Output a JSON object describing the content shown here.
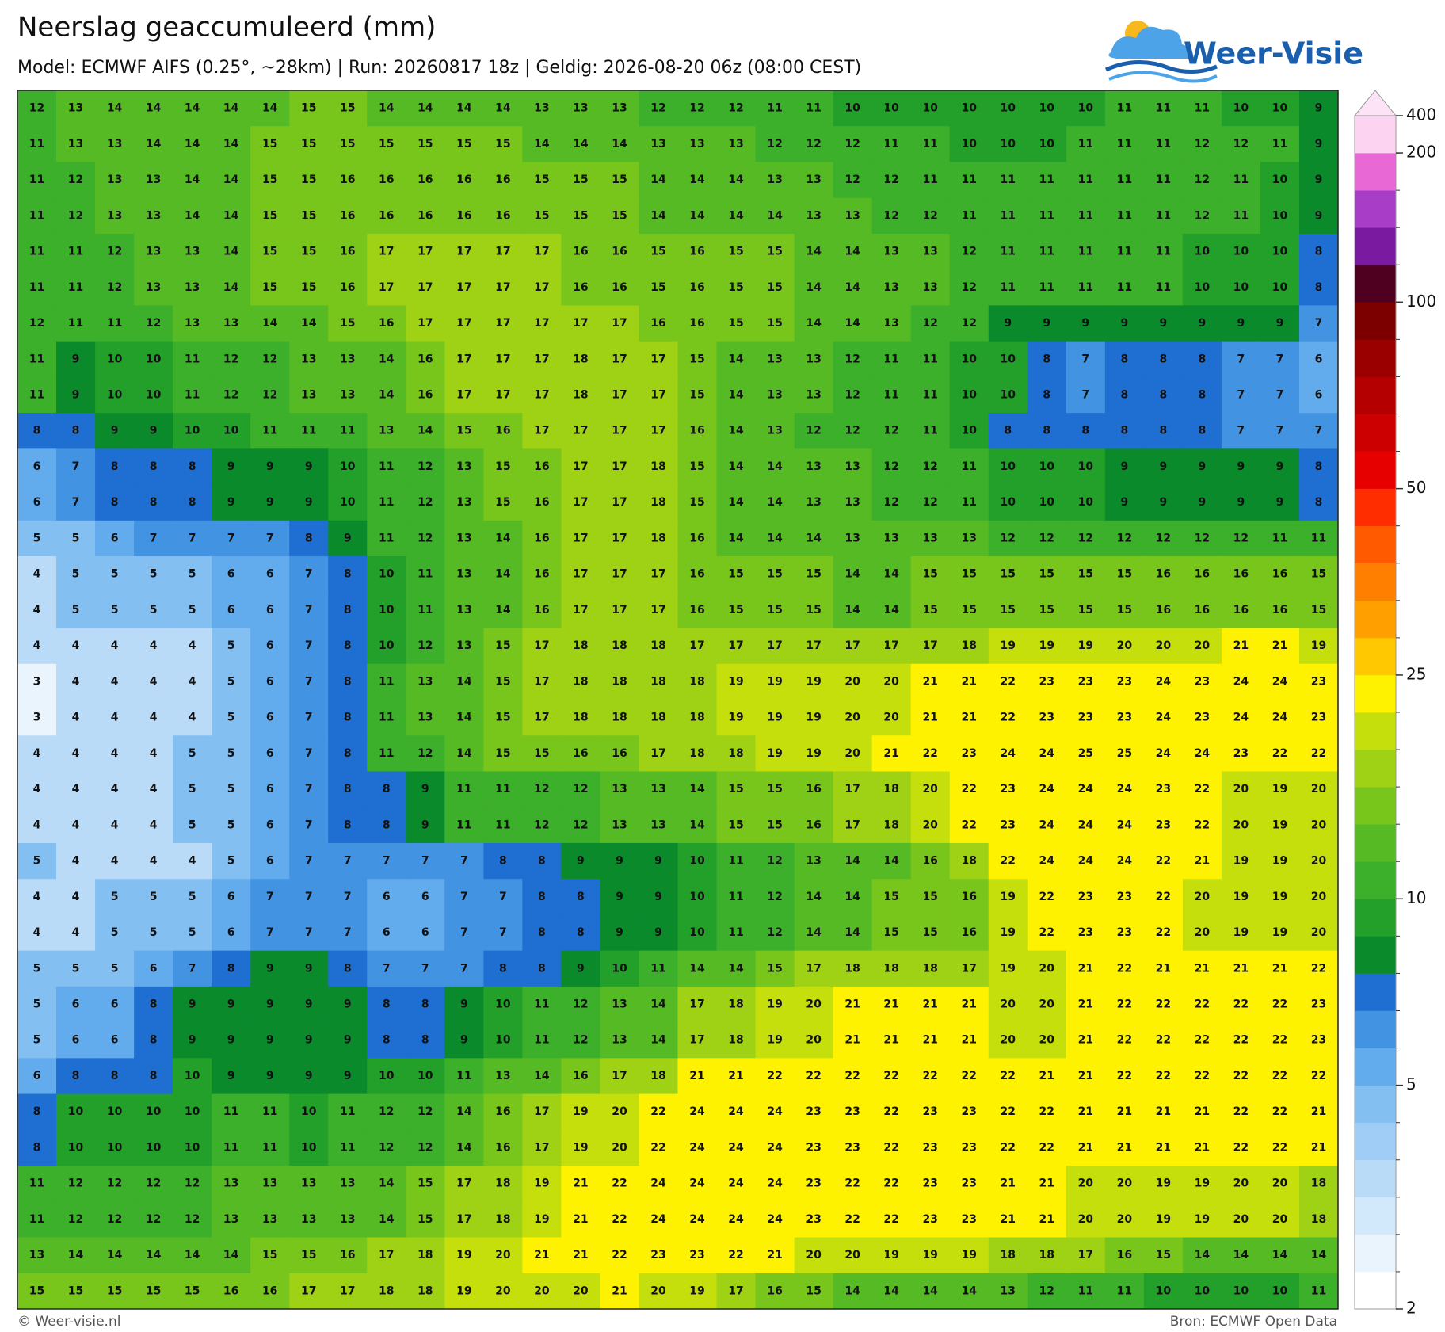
{
  "header": {
    "title": "Neerslag geaccumuleerd (mm)",
    "subtitle": "Model: ECMWF AIFS (0.25°, ~28km)  |  Run: 20260817 18z  |  Geldig: 2026-08-20 06z (08:00 CEST)",
    "logo": "Weer-Visie"
  },
  "map": {
    "rows": [
      [
        12,
        13,
        14,
        14,
        14,
        14,
        14,
        15,
        15,
        14,
        14,
        14,
        14,
        13,
        13,
        13,
        12,
        12,
        12,
        11,
        11,
        10,
        10,
        10,
        10,
        10,
        10,
        10,
        11,
        11,
        11,
        10,
        10,
        9
      ],
      [
        11,
        13,
        13,
        14,
        14,
        14,
        15,
        15,
        15,
        15,
        15,
        15,
        15,
        14,
        14,
        14,
        13,
        13,
        13,
        12,
        12,
        12,
        11,
        11,
        10,
        10,
        10,
        11,
        11,
        11,
        12,
        12,
        11,
        9
      ],
      [
        11,
        12,
        13,
        13,
        14,
        14,
        15,
        15,
        16,
        16,
        16,
        16,
        16,
        15,
        15,
        15,
        14,
        14,
        14,
        13,
        13,
        12,
        12,
        11,
        11,
        11,
        11,
        11,
        11,
        11,
        12,
        11,
        10,
        9
      ],
      [
        11,
        12,
        13,
        13,
        14,
        14,
        15,
        15,
        16,
        16,
        16,
        16,
        16,
        15,
        15,
        15,
        14,
        14,
        14,
        14,
        13,
        13,
        12,
        12,
        11,
        11,
        11,
        11,
        11,
        11,
        12,
        11,
        10,
        9
      ],
      [
        11,
        11,
        12,
        13,
        13,
        14,
        15,
        15,
        16,
        17,
        17,
        17,
        17,
        17,
        16,
        16,
        15,
        16,
        15,
        15,
        14,
        14,
        13,
        13,
        12,
        11,
        11,
        11,
        11,
        11,
        10,
        10,
        10,
        8
      ],
      [
        11,
        11,
        12,
        13,
        13,
        14,
        15,
        15,
        16,
        17,
        17,
        17,
        17,
        17,
        16,
        16,
        15,
        16,
        15,
        15,
        14,
        14,
        13,
        13,
        12,
        11,
        11,
        11,
        11,
        11,
        10,
        10,
        10,
        8
      ],
      [
        12,
        11,
        11,
        12,
        13,
        13,
        14,
        14,
        15,
        16,
        17,
        17,
        17,
        17,
        17,
        17,
        16,
        16,
        15,
        15,
        14,
        14,
        13,
        12,
        12,
        9,
        9,
        9,
        9,
        9,
        9,
        9,
        9,
        7
      ],
      [
        11,
        9,
        10,
        10,
        11,
        12,
        12,
        13,
        13,
        14,
        16,
        17,
        17,
        17,
        18,
        17,
        17,
        15,
        14,
        13,
        13,
        12,
        11,
        11,
        10,
        10,
        8,
        7,
        8,
        8,
        8,
        7,
        7,
        6
      ],
      [
        11,
        9,
        10,
        10,
        11,
        12,
        12,
        13,
        13,
        14,
        16,
        17,
        17,
        17,
        18,
        17,
        17,
        15,
        14,
        13,
        13,
        12,
        11,
        11,
        10,
        10,
        8,
        7,
        8,
        8,
        8,
        7,
        7,
        6
      ],
      [
        8,
        8,
        9,
        9,
        10,
        10,
        11,
        11,
        11,
        13,
        14,
        15,
        16,
        17,
        17,
        17,
        17,
        16,
        14,
        13,
        12,
        12,
        12,
        11,
        10,
        8,
        8,
        8,
        8,
        8,
        8,
        7,
        7,
        7
      ],
      [
        6,
        7,
        8,
        8,
        8,
        9,
        9,
        9,
        10,
        11,
        12,
        13,
        15,
        16,
        17,
        17,
        18,
        15,
        14,
        14,
        13,
        13,
        12,
        12,
        11,
        10,
        10,
        10,
        9,
        9,
        9,
        9,
        9,
        8
      ],
      [
        6,
        7,
        8,
        8,
        8,
        9,
        9,
        9,
        10,
        11,
        12,
        13,
        15,
        16,
        17,
        17,
        18,
        15,
        14,
        14,
        13,
        13,
        12,
        12,
        11,
        10,
        10,
        10,
        9,
        9,
        9,
        9,
        9,
        8
      ],
      [
        5,
        5,
        6,
        7,
        7,
        7,
        7,
        8,
        9,
        11,
        12,
        13,
        14,
        16,
        17,
        17,
        18,
        16,
        14,
        14,
        14,
        13,
        13,
        13,
        13,
        12,
        12,
        12,
        12,
        12,
        12,
        12,
        11,
        11
      ],
      [
        4,
        5,
        5,
        5,
        5,
        6,
        6,
        7,
        8,
        10,
        11,
        13,
        14,
        16,
        17,
        17,
        17,
        16,
        15,
        15,
        15,
        14,
        14,
        15,
        15,
        15,
        15,
        15,
        15,
        16,
        16,
        16,
        16,
        15
      ],
      [
        4,
        5,
        5,
        5,
        5,
        6,
        6,
        7,
        8,
        10,
        11,
        13,
        14,
        16,
        17,
        17,
        17,
        16,
        15,
        15,
        15,
        14,
        14,
        15,
        15,
        15,
        15,
        15,
        15,
        16,
        16,
        16,
        16,
        15
      ],
      [
        4,
        4,
        4,
        4,
        4,
        5,
        6,
        7,
        8,
        10,
        12,
        13,
        15,
        17,
        18,
        18,
        18,
        17,
        17,
        17,
        17,
        17,
        17,
        17,
        18,
        19,
        19,
        19,
        20,
        20,
        20,
        21,
        21,
        19
      ],
      [
        3,
        4,
        4,
        4,
        4,
        5,
        6,
        7,
        8,
        11,
        13,
        14,
        15,
        17,
        18,
        18,
        18,
        18,
        19,
        19,
        19,
        20,
        20,
        21,
        21,
        22,
        23,
        23,
        23,
        24,
        23,
        24,
        24,
        23
      ],
      [
        3,
        4,
        4,
        4,
        4,
        5,
        6,
        7,
        8,
        11,
        13,
        14,
        15,
        17,
        18,
        18,
        18,
        18,
        19,
        19,
        19,
        20,
        20,
        21,
        21,
        22,
        23,
        23,
        23,
        24,
        23,
        24,
        24,
        23
      ],
      [
        4,
        4,
        4,
        4,
        5,
        5,
        6,
        7,
        8,
        11,
        12,
        14,
        15,
        15,
        16,
        16,
        17,
        18,
        18,
        19,
        19,
        20,
        21,
        22,
        23,
        24,
        24,
        25,
        25,
        24,
        24,
        23,
        22,
        22
      ],
      [
        4,
        4,
        4,
        4,
        5,
        5,
        6,
        7,
        8,
        8,
        9,
        11,
        11,
        12,
        12,
        13,
        13,
        14,
        15,
        15,
        16,
        17,
        18,
        20,
        22,
        23,
        24,
        24,
        24,
        23,
        22,
        20,
        19,
        20
      ],
      [
        4,
        4,
        4,
        4,
        5,
        5,
        6,
        7,
        8,
        8,
        9,
        11,
        11,
        12,
        12,
        13,
        13,
        14,
        15,
        15,
        16,
        17,
        18,
        20,
        22,
        23,
        24,
        24,
        24,
        23,
        22,
        20,
        19,
        20
      ],
      [
        5,
        4,
        4,
        4,
        4,
        5,
        6,
        7,
        7,
        7,
        7,
        7,
        8,
        8,
        9,
        9,
        9,
        10,
        11,
        12,
        13,
        14,
        14,
        16,
        18,
        22,
        24,
        24,
        24,
        22,
        21,
        19,
        19,
        20
      ],
      [
        4,
        4,
        5,
        5,
        5,
        6,
        7,
        7,
        7,
        6,
        6,
        7,
        7,
        8,
        8,
        9,
        9,
        10,
        11,
        12,
        14,
        14,
        15,
        15,
        16,
        19,
        22,
        23,
        23,
        22,
        20,
        19,
        19,
        20
      ],
      [
        4,
        4,
        5,
        5,
        5,
        6,
        7,
        7,
        7,
        6,
        6,
        7,
        7,
        8,
        8,
        9,
        9,
        10,
        11,
        12,
        14,
        14,
        15,
        15,
        16,
        19,
        22,
        23,
        23,
        22,
        20,
        19,
        19,
        20
      ],
      [
        5,
        5,
        5,
        6,
        7,
        8,
        9,
        9,
        8,
        7,
        7,
        7,
        8,
        8,
        9,
        10,
        11,
        14,
        14,
        15,
        17,
        18,
        18,
        18,
        17,
        19,
        20,
        21,
        22,
        21,
        21,
        21,
        21,
        22
      ],
      [
        5,
        6,
        6,
        8,
        9,
        9,
        9,
        9,
        9,
        8,
        8,
        9,
        10,
        11,
        12,
        13,
        14,
        17,
        18,
        19,
        20,
        21,
        21,
        21,
        21,
        20,
        20,
        21,
        22,
        22,
        22,
        22,
        22,
        23
      ],
      [
        5,
        6,
        6,
        8,
        9,
        9,
        9,
        9,
        9,
        8,
        8,
        9,
        10,
        11,
        12,
        13,
        14,
        17,
        18,
        19,
        20,
        21,
        21,
        21,
        21,
        20,
        20,
        21,
        22,
        22,
        22,
        22,
        22,
        23
      ],
      [
        6,
        8,
        8,
        8,
        10,
        9,
        9,
        9,
        9,
        10,
        10,
        11,
        13,
        14,
        16,
        17,
        18,
        21,
        21,
        22,
        22,
        22,
        22,
        22,
        22,
        22,
        21,
        21,
        22,
        22,
        22,
        22,
        22,
        22
      ],
      [
        8,
        10,
        10,
        10,
        10,
        11,
        11,
        10,
        11,
        12,
        12,
        14,
        16,
        17,
        19,
        20,
        22,
        24,
        24,
        24,
        23,
        23,
        22,
        23,
        23,
        22,
        22,
        21,
        21,
        21,
        21,
        22,
        22,
        21
      ],
      [
        8,
        10,
        10,
        10,
        10,
        11,
        11,
        10,
        11,
        12,
        12,
        14,
        16,
        17,
        19,
        20,
        22,
        24,
        24,
        24,
        23,
        23,
        22,
        23,
        23,
        22,
        22,
        21,
        21,
        21,
        21,
        22,
        22,
        21
      ],
      [
        11,
        12,
        12,
        12,
        12,
        13,
        13,
        13,
        13,
        14,
        15,
        17,
        18,
        19,
        21,
        22,
        24,
        24,
        24,
        24,
        23,
        22,
        22,
        23,
        23,
        21,
        21,
        20,
        20,
        19,
        19,
        20,
        20,
        18
      ],
      [
        11,
        12,
        12,
        12,
        12,
        13,
        13,
        13,
        13,
        14,
        15,
        17,
        18,
        19,
        21,
        22,
        24,
        24,
        24,
        24,
        23,
        22,
        22,
        23,
        23,
        21,
        21,
        20,
        20,
        19,
        19,
        20,
        20,
        18
      ],
      [
        13,
        14,
        14,
        14,
        14,
        14,
        15,
        15,
        16,
        17,
        18,
        19,
        20,
        21,
        21,
        22,
        23,
        23,
        22,
        21,
        20,
        20,
        19,
        19,
        19,
        18,
        18,
        17,
        16,
        15,
        14,
        14,
        14,
        14
      ],
      [
        15,
        15,
        15,
        15,
        15,
        16,
        16,
        17,
        17,
        18,
        18,
        19,
        20,
        20,
        20,
        21,
        20,
        19,
        17,
        16,
        15,
        14,
        14,
        14,
        14,
        13,
        12,
        11,
        11,
        10,
        10,
        10,
        10,
        11
      ]
    ]
  },
  "colorbar": {
    "levels": [
      2,
      2.5,
      3,
      3.5,
      4,
      4.5,
      5,
      6,
      7,
      8,
      9,
      10,
      12,
      14,
      16,
      18,
      20,
      25,
      30,
      35,
      40,
      45,
      50,
      60,
      70,
      80,
      90,
      100,
      125,
      150,
      175,
      200,
      400
    ],
    "colors": [
      "#ffffff",
      "#eaf4fd",
      "#d2e8fb",
      "#b9dbf8",
      "#9fcdf5",
      "#84bff2",
      "#62abec",
      "#4393e3",
      "#1f6fd2",
      "#0b8a2c",
      "#22a02a",
      "#3caf2b",
      "#56ba24",
      "#78c51c",
      "#9fd114",
      "#c4df0c",
      "#fff200",
      "#ffc800",
      "#ffa000",
      "#ff8000",
      "#ff5a00",
      "#ff2d00",
      "#e60000",
      "#cc0000",
      "#b40000",
      "#9a0000",
      "#7d0000",
      "#4f0020",
      "#7a1aa0",
      "#a83ec8",
      "#e868d6",
      "#fcd3f1"
    ],
    "over_color": "#fde3f6",
    "ticks": [
      2,
      5,
      10,
      25,
      50,
      100,
      200,
      400
    ]
  },
  "footer": {
    "left": "© Weer-visie.nl",
    "right": "Bron: ECMWF Open Data"
  }
}
